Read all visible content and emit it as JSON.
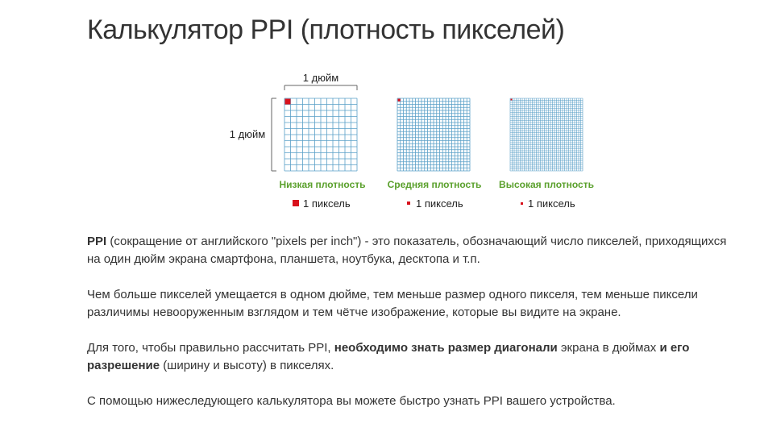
{
  "page": {
    "title": "Калькулятор PPI (плотность пикселей)"
  },
  "figure": {
    "dimension_top": "1 дюйм",
    "dimension_left": "1 дюйм",
    "accent_color": "#5aa0c8",
    "label_color": "#5aa02c",
    "pixel_color": "#d8111c",
    "panels": [
      {
        "label": "Низкая плотность",
        "legend": "1 пиксель",
        "grid": 12
      },
      {
        "label": "Средняя плотность",
        "legend": "1 пиксель",
        "grid": 24
      },
      {
        "label": "Высокая плотность",
        "legend": "1 пиксель",
        "grid": 36
      }
    ]
  },
  "article": {
    "p1": {
      "term": "PPI",
      "text": " (сокращение от английского \"pixels per inch\") - это показатель, обозначающий число пикселей, приходящихся на один дюйм экрана смартфона, планшета, ноутбука, десктопа и т.п."
    },
    "p2": "Чем больше пикселей умещается в одном дюйме, тем меньше размер одного пикселя, тем меньше пиксели различимы невооруженным взглядом и тем чётче изображение, которые вы видите на экране.",
    "p3": {
      "t1": "Для того, чтобы правильно рассчитать PPI, ",
      "b1": "необходимо знать размер диагонали",
      "t2": " экрана в дюймах ",
      "b2": "и его разрешение",
      "t3": " (ширину и высоту) в пикселях."
    },
    "p4": "С помощью нижеследующего калькулятора вы можете быстро узнать PPI вашего устройства."
  }
}
